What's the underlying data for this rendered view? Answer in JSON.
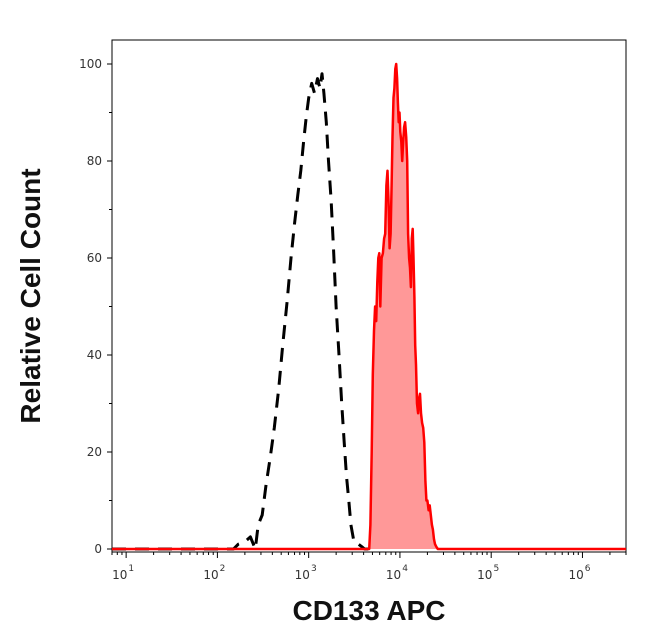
{
  "chart_data": {
    "type": "area",
    "title": "",
    "xlabel": "CD133 APC",
    "ylabel": "Relative Cell Count",
    "x_scale": "log",
    "xlim": [
      7,
      3000000
    ],
    "ylim": [
      0,
      105
    ],
    "x_ticks": [
      {
        "value": 10,
        "base": "10",
        "exp": "1"
      },
      {
        "value": 100,
        "base": "10",
        "exp": "2"
      },
      {
        "value": 1000,
        "base": "10",
        "exp": "3"
      },
      {
        "value": 10000,
        "base": "10",
        "exp": "4"
      },
      {
        "value": 100000,
        "base": "10",
        "exp": "5"
      },
      {
        "value": 1000000,
        "base": "10",
        "exp": "6"
      }
    ],
    "y_ticks": [
      "0",
      "20",
      "40",
      "60",
      "80",
      "100"
    ],
    "grid": false,
    "series": [
      {
        "style": "dashed",
        "color": "#000000",
        "fill": "none",
        "x": [
          7,
          150,
          170,
          200,
          230,
          260,
          280,
          310,
          340,
          380,
          420,
          470,
          520,
          580,
          640,
          700,
          760,
          820,
          880,
          940,
          1000,
          1080,
          1160,
          1250,
          1330,
          1400,
          1470,
          1560,
          1650,
          1760,
          1870,
          2000,
          2150,
          2300,
          2450,
          2600,
          2750,
          2900,
          3100,
          3300,
          3500,
          3800,
          4100,
          4500
        ],
        "y": [
          0,
          0,
          1,
          1.5,
          2.5,
          0,
          5,
          7,
          13,
          19,
          25,
          33,
          42,
          51,
          60,
          67,
          73,
          78,
          84,
          89,
          93,
          96,
          94,
          97,
          95,
          98,
          94,
          88,
          80,
          72,
          62,
          50,
          40,
          30,
          22,
          15,
          10,
          5,
          2,
          1,
          1,
          0.5,
          0,
          0
        ]
      },
      {
        "style": "solid",
        "color": "#ff0000",
        "fill": "#ff9898",
        "x": [
          7,
          3000,
          4600,
          4750,
          4900,
          5050,
          5200,
          5350,
          5500,
          5650,
          5800,
          5950,
          6100,
          6300,
          6500,
          6700,
          6900,
          7100,
          7300,
          7500,
          7700,
          7900,
          8100,
          8300,
          8500,
          8700,
          8900,
          9100,
          9300,
          9500,
          9700,
          9900,
          10100,
          10350,
          10600,
          10850,
          11100,
          11400,
          11700,
          12000,
          12300,
          12600,
          12900,
          13200,
          13500,
          13800,
          14100,
          14400,
          14700,
          15000,
          15400,
          15800,
          16200,
          16600,
          17000,
          17500,
          18000,
          18500,
          19000,
          19500,
          20000,
          20600,
          21200,
          21800,
          22400,
          23000,
          23600,
          24200,
          25000,
          26000,
          27500,
          30000,
          3000000
        ],
        "y": [
          0,
          0,
          0,
          5,
          20,
          36,
          45,
          50,
          47,
          55,
          60,
          61,
          50,
          60,
          61,
          64,
          65,
          75,
          78,
          72,
          62,
          65,
          75,
          85,
          93,
          95,
          99,
          100,
          97,
          92,
          88,
          90,
          86,
          84,
          80,
          84,
          87,
          88,
          85,
          80,
          65,
          60,
          58,
          54,
          64,
          66,
          60,
          52,
          42,
          38,
          30,
          28,
          31,
          32,
          28,
          26,
          25,
          22,
          14,
          10,
          10,
          8,
          9,
          7,
          5,
          4,
          2,
          1,
          0.5,
          0,
          0,
          0,
          0
        ]
      }
    ]
  }
}
